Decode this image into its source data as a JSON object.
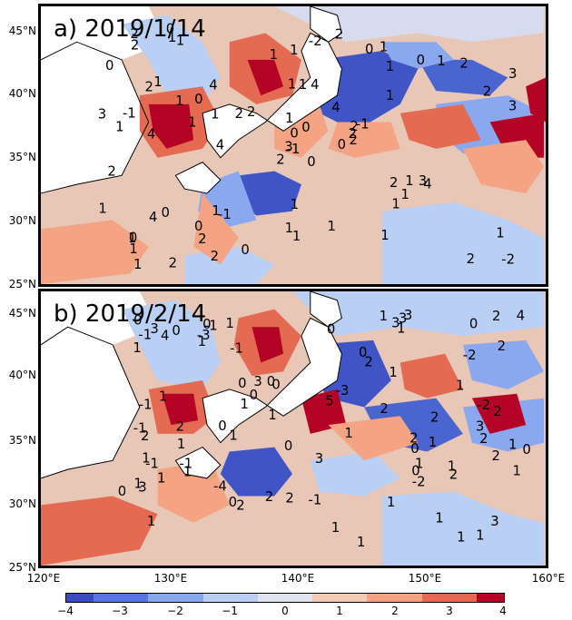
{
  "panels": [
    {
      "title": "a) 2019/1/14"
    },
    {
      "title": "b) 2019/2/14"
    }
  ],
  "lat_ticks_a": [
    "45°N",
    "40°N",
    "35°N",
    "30°N",
    "25°N"
  ],
  "lat_ticks_b": [
    "45°N",
    "40°N",
    "35°N",
    "30°N",
    "25°N"
  ],
  "lon_ticks": [
    "120°E",
    "130°E",
    "140°E",
    "150°E",
    "160°E"
  ],
  "colorbar": {
    "ticks": [
      "−4",
      "−3",
      "−2",
      "−1",
      "0",
      "1",
      "2",
      "3",
      "4"
    ],
    "colors": [
      "#3a4cc0",
      "#5a78e0",
      "#8aa8f0",
      "#b9cff4",
      "#dfe4ee",
      "#f1cbb4",
      "#f4a383",
      "#e46a52",
      "#b40426"
    ]
  },
  "contour_labels_a": [
    "0",
    "2",
    "-1",
    "0",
    "2",
    "-1",
    "1",
    "4",
    "1",
    "0",
    "-1",
    "-2",
    "4",
    "3",
    "2",
    "1",
    "2",
    "1",
    "4",
    "0",
    "2",
    "1",
    "2",
    "1",
    "-1",
    "4",
    "1",
    "1",
    "1",
    "2",
    "3",
    "3",
    "1",
    "0",
    "4",
    "0",
    "1",
    "2",
    "1",
    "3",
    "2",
    "2",
    "1",
    "1",
    "2",
    "3",
    "2",
    "1",
    "1",
    "2",
    "4",
    "2",
    "0",
    "1",
    "1",
    "0",
    "1",
    "2",
    "1",
    "2",
    "-2",
    "4",
    "-1",
    "0",
    "1",
    "0",
    "0",
    "1",
    "0",
    "1",
    "1",
    "0",
    "1",
    "1",
    "1",
    "2",
    "1",
    "2",
    "1"
  ],
  "contour_labels_b": [
    "0",
    "2",
    "1",
    "-1",
    "0",
    "1",
    "3",
    "1",
    "0",
    "1",
    "1",
    "-1",
    "-1",
    "3",
    "2",
    "2",
    "3",
    "1",
    "0",
    "1",
    "4",
    "0",
    "1",
    "2",
    "1",
    "-3",
    "1",
    "2",
    "1",
    "2",
    "1",
    "1",
    "0",
    "1",
    "3",
    "2",
    "0",
    "2",
    "-1",
    "1",
    "2",
    "3",
    "1",
    "2",
    "1",
    "-4",
    "0",
    "3",
    "2",
    "-1",
    "0",
    "3",
    "2",
    "2",
    "-2",
    "1",
    "1",
    "0",
    "1",
    "0",
    "1",
    "-1",
    "-3",
    "1",
    "0",
    "1",
    "0",
    "-1",
    "0",
    "1",
    "2",
    "1",
    "1",
    "4",
    "5",
    "3",
    "-1",
    "0",
    "2",
    "-2",
    "1",
    "0",
    "3",
    "1",
    "-2",
    "1",
    "0"
  ]
}
